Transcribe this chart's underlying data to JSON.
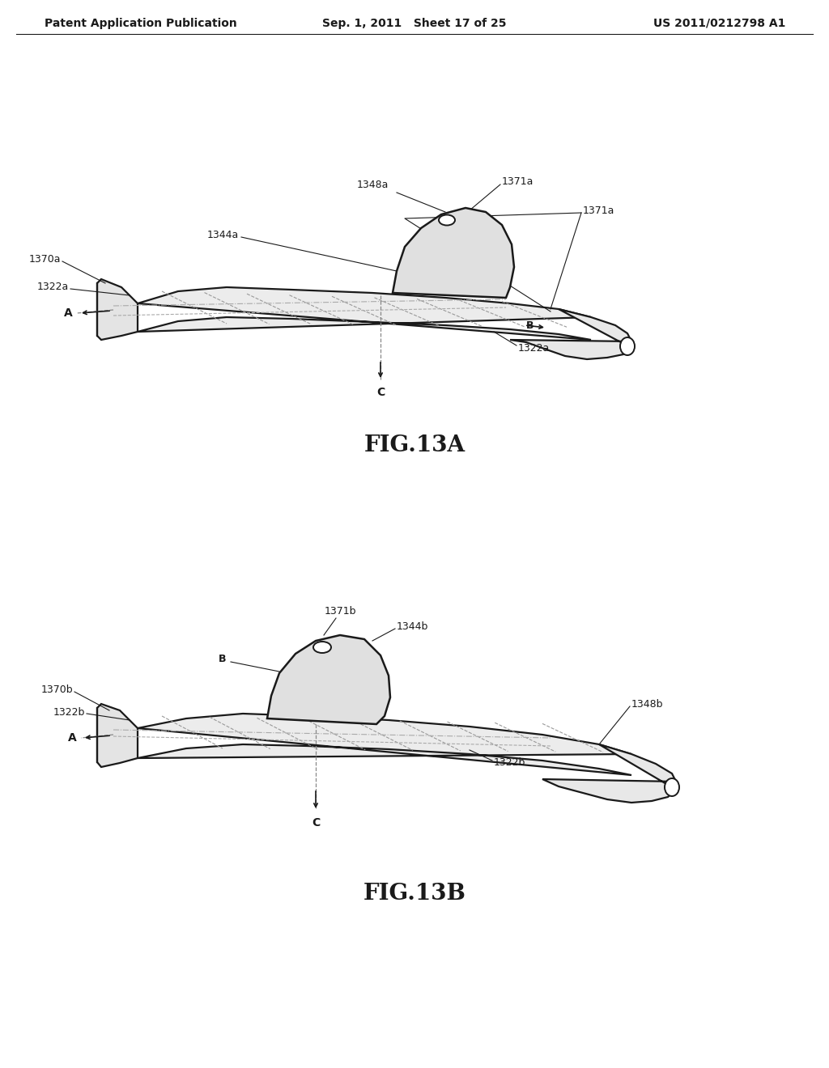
{
  "background_color": "#ffffff",
  "header_left": "Patent Application Publication",
  "header_mid": "Sep. 1, 2011   Sheet 17 of 25",
  "header_right": "US 2011/0212798 A1",
  "header_fontsize": 10,
  "fig13a_label": "FIG.13A",
  "fig13b_label": "FIG.13B",
  "line_color": "#1a1a1a",
  "label_fontsize": 9,
  "fig_label_fontsize": 20
}
